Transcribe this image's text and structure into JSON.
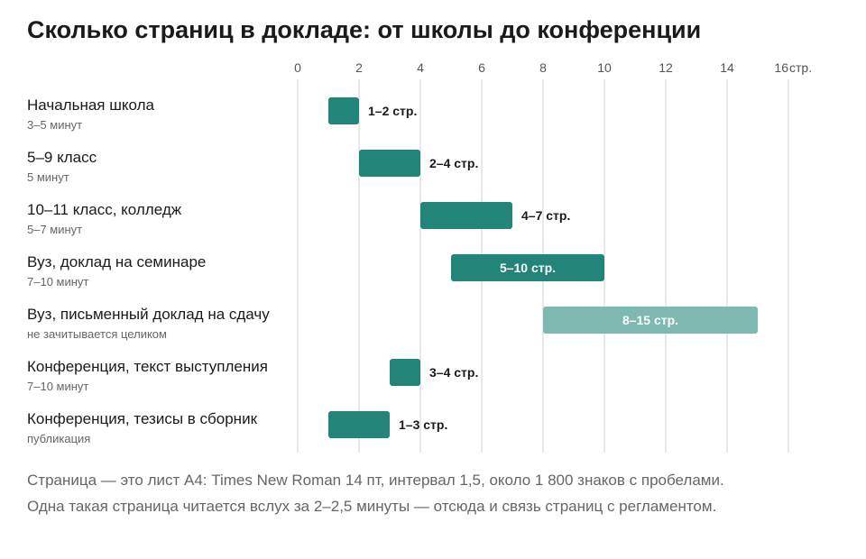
{
  "title": "Сколько страниц в докладе: от школы до конференции",
  "footnote": {
    "line1": "Страница — это лист А4: Times New Roman 14 пт, интервал 1,5, около 1 800 знаков с пробелами.",
    "line2": "Одна такая страница читается вслух за 2–2,5 минуты — отсюда и связь страниц с регламентом."
  },
  "colors": {
    "bar": "#23847a",
    "bar_light": "#7db8b1",
    "grid": "#e2e2e2",
    "label_inside": "#ffffff",
    "label_outside": "#1a1a1a"
  },
  "chart_data": {
    "type": "bar",
    "orientation": "horizontal-range",
    "xlim": [
      0,
      16
    ],
    "xticks": [
      0,
      2,
      4,
      6,
      8,
      10,
      12,
      14,
      16
    ],
    "xunit": "стр.",
    "grid": true,
    "rows": [
      {
        "label": "Начальная школа",
        "sub": "3–5 минут",
        "start": 1,
        "end": 2,
        "value_label": "1–2 стр.",
        "style": "dark"
      },
      {
        "label": "5–9 класс",
        "sub": "5 минут",
        "start": 2,
        "end": 4,
        "value_label": "2–4 стр.",
        "style": "dark"
      },
      {
        "label": "10–11 класс, колледж",
        "sub": "5–7 минут",
        "start": 4,
        "end": 7,
        "value_label": "4–7 стр.",
        "style": "dark"
      },
      {
        "label": "Вуз, доклад на семинаре",
        "sub": "7–10 минут",
        "start": 5,
        "end": 10,
        "value_label": "5–10 стр.",
        "style": "dark"
      },
      {
        "label": "Вуз, письменный доклад на сдачу",
        "sub": "не зачитывается целиком",
        "start": 8,
        "end": 15,
        "value_label": "8–15 стр.",
        "style": "light"
      },
      {
        "label": "Конференция, текст выступления",
        "sub": "7–10 минут",
        "start": 3,
        "end": 4,
        "value_label": "3–4 стр.",
        "style": "dark"
      },
      {
        "label": "Конференция, тезисы в сборник",
        "sub": "публикация",
        "start": 1,
        "end": 3,
        "value_label": "1–3 стр.",
        "style": "dark"
      }
    ]
  }
}
